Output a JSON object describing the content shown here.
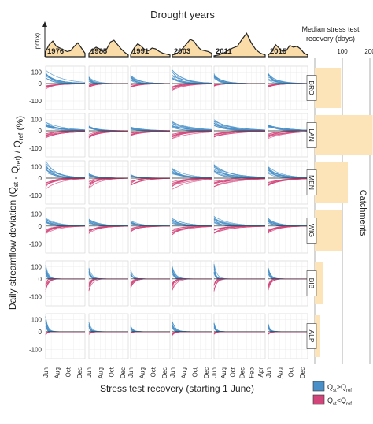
{
  "chart_data": {
    "type": "line",
    "title": "Drought years",
    "pdf_label": "pdf(x)",
    "ylabel": "Daily streamflow deviation (Q_st - Q_ref) / Q_ref (%)",
    "xlabel": "Stress test recovery (starting 1 June)",
    "y_ticks": [
      "100",
      "0",
      "-100"
    ],
    "ylim": [
      -100,
      150
    ],
    "years": [
      {
        "label": "1976",
        "x_ticks": [
          "Jun",
          "Aug",
          "Oct",
          "Dec"
        ],
        "months": 7
      },
      {
        "label": "1985",
        "x_ticks": [
          "Jun",
          "Aug",
          "Oct",
          "Dec"
        ],
        "months": 7
      },
      {
        "label": "1991",
        "x_ticks": [
          "Jun",
          "Aug",
          "Oct",
          "Dec"
        ],
        "months": 7
      },
      {
        "label": "2003",
        "x_ticks": [
          "Jun",
          "Aug",
          "Oct",
          "Dec"
        ],
        "months": 7
      },
      {
        "label": "2011",
        "x_ticks": [
          "Jun",
          "Aug",
          "Oct",
          "Dec",
          "Feb",
          "Apr"
        ],
        "months": 11
      },
      {
        "label": "2015",
        "x_ticks": [
          "Jun",
          "Aug",
          "Oct",
          "Dec"
        ],
        "months": 7
      }
    ],
    "pdf_curves": [
      [
        0.3,
        0.7,
        0.9,
        0.6,
        0.5,
        0.4,
        0.3,
        0.35,
        0.6,
        0.8,
        0.5,
        0.2
      ],
      [
        0.2,
        0.4,
        0.55,
        0.45,
        0.3,
        0.45,
        0.85,
        0.95,
        0.7,
        0.45,
        0.25,
        0.1
      ],
      [
        0.1,
        0.5,
        0.75,
        0.6,
        0.4,
        0.35,
        0.5,
        0.45,
        0.3,
        0.2,
        0.15,
        0.1
      ],
      [
        0.1,
        0.15,
        0.3,
        0.5,
        0.75,
        1.0,
        0.9,
        0.6,
        0.4,
        0.35,
        0.3,
        0.2
      ],
      [
        0.05,
        0.1,
        0.2,
        0.35,
        0.5,
        0.6,
        1.0,
        1.35,
        0.8,
        0.4,
        0.2,
        0.1
      ],
      [
        0.1,
        0.3,
        0.7,
        0.5,
        0.3,
        0.35,
        0.65,
        0.55,
        0.6,
        0.45,
        0.2,
        0.1
      ]
    ],
    "catchments": [
      {
        "code": "BRO",
        "recovery_days": 95,
        "pos_peak": [
          110,
          55,
          75,
          110,
          85,
          80
        ],
        "neg_peak": [
          -30,
          -25,
          -20,
          -35,
          -15,
          -25
        ],
        "decay": [
          60,
          25,
          35,
          55,
          45,
          40
        ]
      },
      {
        "code": "LAN",
        "recovery_days": 210,
        "pos_peak": [
          75,
          40,
          30,
          75,
          95,
          45
        ],
        "neg_peak": [
          -40,
          -45,
          -30,
          -40,
          -35,
          -40
        ],
        "decay": [
          75,
          45,
          55,
          80,
          110,
          70
        ]
      },
      {
        "code": "MEN",
        "recovery_days": 120,
        "pos_peak": [
          140,
          40,
          30,
          80,
          120,
          95
        ],
        "neg_peak": [
          -60,
          -55,
          -45,
          -60,
          -50,
          -55
        ],
        "decay": [
          50,
          35,
          40,
          65,
          90,
          55
        ]
      },
      {
        "code": "WIG",
        "recovery_days": 100,
        "pos_peak": [
          70,
          55,
          50,
          60,
          75,
          60
        ],
        "neg_peak": [
          -45,
          -40,
          -35,
          -45,
          -40,
          -40
        ],
        "decay": [
          45,
          40,
          40,
          55,
          65,
          45
        ]
      },
      {
        "code": "BIB",
        "recovery_days": 30,
        "pos_peak": [
          110,
          90,
          70,
          95,
          120,
          100
        ],
        "neg_peak": [
          -70,
          -65,
          -55,
          -60,
          -65,
          -60
        ],
        "decay": [
          10,
          12,
          12,
          14,
          12,
          12
        ]
      },
      {
        "code": "ALP",
        "recovery_days": 20,
        "pos_peak": [
          120,
          75,
          45,
          80,
          70,
          65
        ],
        "neg_peak": [
          -20,
          -15,
          -10,
          -20,
          -15,
          -15
        ],
        "decay": [
          8,
          10,
          10,
          12,
          10,
          10
        ]
      }
    ],
    "recovery": {
      "title_line1": "Median stress test",
      "title_line2": "recovery (days)",
      "ticks": [
        100,
        200
      ],
      "side_label": "Catchments"
    },
    "legend": {
      "placement": "bottom-right",
      "items": [
        {
          "label": "Q_st>Q_ref",
          "color": "#4a90c8"
        },
        {
          "label": "Q_st<Q_ref",
          "color": "#d2457a"
        }
      ]
    },
    "colors": {
      "positive": "#4a90c8",
      "negative": "#d2457a",
      "pdf_fill": "#fadca8",
      "bar_fill": "#fce3b8"
    }
  }
}
